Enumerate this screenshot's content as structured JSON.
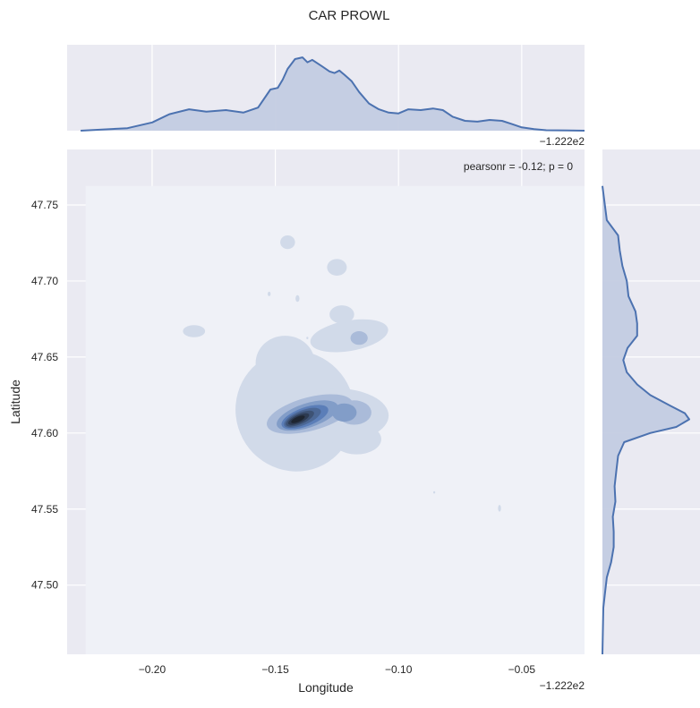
{
  "chart_data": {
    "type": "jointplot-kde",
    "title": "CAR PROWL",
    "annotation": "pearsonr = -0.12; p = 0",
    "xlabel": "Longitude",
    "ylabel": "Latitude",
    "x_offset_label": "−1.222e2",
    "x_offset": -122.2,
    "x_ticks": [
      -0.2,
      -0.15,
      -0.1,
      -0.05
    ],
    "x_tick_labels": [
      "−0.20",
      "−0.15",
      "−0.10",
      "−0.05"
    ],
    "y_ticks": [
      47.5,
      47.55,
      47.6,
      47.65,
      47.7,
      47.75
    ],
    "y_tick_labels": [
      "47.50",
      "47.55",
      "47.60",
      "47.65",
      "47.70",
      "47.75"
    ],
    "xlim": [
      -0.2345,
      -0.0245
    ],
    "ylim": [
      47.4545,
      47.7865
    ],
    "grid": true,
    "colors": {
      "axes_bg": "#EAEAF2",
      "grid": "#FFFFFF",
      "line": "#4C72B0",
      "fill": "#C3CCE2",
      "kde_base": "#EFF1F7",
      "kde_low": "#D1DAE9",
      "kde_mid": "#5B7EB8",
      "kde_high": "#1E2530"
    },
    "kde_bounds": {
      "x": [
        -0.227,
        -0.0245
      ],
      "y": [
        47.4545,
        47.7625
      ]
    },
    "marginal_x": {
      "x": [
        -0.229,
        -0.21,
        -0.2,
        -0.193,
        -0.185,
        -0.178,
        -0.17,
        -0.163,
        -0.157,
        -0.152,
        -0.149,
        -0.147,
        -0.145,
        -0.142,
        -0.139,
        -0.137,
        -0.135,
        -0.133,
        -0.131,
        -0.128,
        -0.126,
        -0.124,
        -0.122,
        -0.119,
        -0.116,
        -0.112,
        -0.108,
        -0.104,
        -0.1,
        -0.096,
        -0.091,
        -0.086,
        -0.082,
        -0.078,
        -0.073,
        -0.068,
        -0.063,
        -0.058,
        -0.054,
        -0.05,
        -0.045,
        -0.04,
        -0.0245
      ],
      "density": [
        0.0,
        0.03,
        0.1,
        0.2,
        0.26,
        0.23,
        0.25,
        0.22,
        0.28,
        0.5,
        0.52,
        0.62,
        0.75,
        0.87,
        0.89,
        0.83,
        0.86,
        0.82,
        0.78,
        0.72,
        0.7,
        0.73,
        0.68,
        0.6,
        0.47,
        0.33,
        0.26,
        0.22,
        0.21,
        0.26,
        0.25,
        0.27,
        0.25,
        0.17,
        0.12,
        0.11,
        0.13,
        0.12,
        0.08,
        0.04,
        0.02,
        0.005,
        0.0
      ]
    },
    "marginal_y": {
      "y": [
        47.7625,
        47.74,
        47.73,
        47.72,
        47.71,
        47.7,
        47.69,
        47.68,
        47.672,
        47.664,
        47.656,
        47.648,
        47.64,
        47.632,
        47.625,
        47.618,
        47.613,
        47.609,
        47.604,
        47.6,
        47.594,
        47.585,
        47.575,
        47.565,
        47.555,
        47.545,
        47.535,
        47.525,
        47.515,
        47.505,
        47.495,
        47.485,
        47.47,
        47.4545
      ],
      "density": [
        0.0,
        0.05,
        0.18,
        0.2,
        0.23,
        0.28,
        0.3,
        0.38,
        0.4,
        0.4,
        0.29,
        0.24,
        0.28,
        0.4,
        0.55,
        0.78,
        0.95,
        1.0,
        0.85,
        0.55,
        0.25,
        0.18,
        0.16,
        0.14,
        0.15,
        0.12,
        0.13,
        0.13,
        0.1,
        0.05,
        0.03,
        0.01,
        0.005,
        0.0
      ]
    },
    "kde_regions": [
      {
        "cx": -0.142,
        "cy": 47.6145,
        "rx": 0.024,
        "ry": 0.04,
        "rot": -28,
        "level": 1
      },
      {
        "cx": -0.126,
        "cy": 47.6115,
        "rx": 0.022,
        "ry": 0.018,
        "rot": 0,
        "level": 1
      },
      {
        "cx": -0.117,
        "cy": 47.596,
        "rx": 0.01,
        "ry": 0.01,
        "rot": 0,
        "level": 1
      },
      {
        "cx": -0.135,
        "cy": 47.591,
        "rx": 0.008,
        "ry": 0.013,
        "rot": 0,
        "level": 1
      },
      {
        "cx": -0.146,
        "cy": 47.646,
        "rx": 0.012,
        "ry": 0.018,
        "rot": 0,
        "level": 1
      },
      {
        "cx": -0.12,
        "cy": 47.664,
        "rx": 0.016,
        "ry": 0.01,
        "rot": -10,
        "level": 1
      },
      {
        "cx": -0.123,
        "cy": 47.678,
        "rx": 0.005,
        "ry": 0.006,
        "rot": 0,
        "level": 1
      },
      {
        "cx": -0.125,
        "cy": 47.709,
        "rx": 0.004,
        "ry": 0.0055,
        "rot": 0,
        "level": 1
      },
      {
        "cx": -0.145,
        "cy": 47.7255,
        "rx": 0.003,
        "ry": 0.0045,
        "rot": 0,
        "level": 1
      },
      {
        "cx": -0.183,
        "cy": 47.667,
        "rx": 0.0045,
        "ry": 0.004,
        "rot": 0,
        "level": 1
      },
      {
        "cx": -0.141,
        "cy": 47.6885,
        "rx": 0.0008,
        "ry": 0.0022,
        "rot": 0,
        "level": 1
      },
      {
        "cx": -0.1525,
        "cy": 47.6915,
        "rx": 0.0006,
        "ry": 0.0015,
        "rot": 0,
        "level": 1
      },
      {
        "cx": -0.059,
        "cy": 47.5505,
        "rx": 0.0006,
        "ry": 0.0022,
        "rot": 0,
        "level": 1
      },
      {
        "cx": -0.0855,
        "cy": 47.561,
        "rx": 0.0004,
        "ry": 0.0008,
        "rot": 0,
        "level": 1
      },
      {
        "cx": -0.137,
        "cy": 47.6625,
        "rx": 0.0004,
        "ry": 0.0008,
        "rot": 0,
        "level": 1
      },
      {
        "cx": -0.116,
        "cy": 47.6625,
        "rx": 0.0035,
        "ry": 0.0045,
        "rot": 0,
        "level": 2
      },
      {
        "cx": -0.136,
        "cy": 47.6125,
        "rx": 0.018,
        "ry": 0.011,
        "rot": -15,
        "level": 2
      },
      {
        "cx": -0.118,
        "cy": 47.6135,
        "rx": 0.007,
        "ry": 0.008,
        "rot": 0,
        "level": 2
      },
      {
        "cx": -0.137,
        "cy": 47.6115,
        "rx": 0.013,
        "ry": 0.008,
        "rot": -18,
        "level": 3
      },
      {
        "cx": -0.122,
        "cy": 47.6135,
        "rx": 0.005,
        "ry": 0.006,
        "rot": 0,
        "level": 3
      },
      {
        "cx": -0.138,
        "cy": 47.6105,
        "rx": 0.01,
        "ry": 0.0062,
        "rot": -20,
        "level": 4
      },
      {
        "cx": -0.139,
        "cy": 47.61,
        "rx": 0.008,
        "ry": 0.0048,
        "rot": -22,
        "level": 5
      },
      {
        "cx": -0.14,
        "cy": 47.6095,
        "rx": 0.0062,
        "ry": 0.0036,
        "rot": -24,
        "level": 6
      },
      {
        "cx": -0.1405,
        "cy": 47.6092,
        "rx": 0.0046,
        "ry": 0.0026,
        "rot": -24,
        "level": 7
      },
      {
        "cx": -0.1408,
        "cy": 47.609,
        "rx": 0.003,
        "ry": 0.0017,
        "rot": -24,
        "level": 8
      }
    ]
  }
}
